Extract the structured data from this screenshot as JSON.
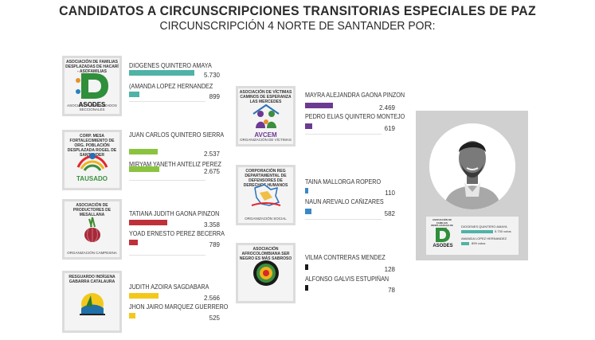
{
  "header": {
    "title": "CANDIDATOS A CIRCUNSCRIPCIONES TRANSITORIAS ESPECIALES DE PAZ",
    "subtitle": "CIRCUNSCRIPCIÓN 4 NORTE DE SANTANDER POR:"
  },
  "colors": {
    "asodes": "#4fb3a6",
    "corpo_fortalecimiento": "#8ac43f",
    "productores": "#c0303b",
    "resguardo": "#f3c81b",
    "avcem": "#6c3a92",
    "corp_derechos": "#3a87c8",
    "afro": "#1a1a1a"
  },
  "chart_data": {
    "type": "bar",
    "title": "CANDIDATOS A CIRCUNSCRIPCIONES TRANSITORIAS ESPECIALES DE PAZ",
    "subtitle": "CIRCUNSCRIPCIÓN 4 NORTE DE SANTANDER POR:",
    "groups": [
      {
        "organization": "ASOCIACIÓN DE FAMILIAS DESPLAZADAS DE HACARÍ - ASOFAMILIAS",
        "logo_text": "ASODES",
        "logo_sub": "ASOCIACIÓN DESPLAZADOS SECCIONALES",
        "color_key": "asodes",
        "candidates": [
          {
            "name": "DIOGENES QUINTERO AMAYA",
            "votes": 5730,
            "label": "5.730"
          },
          {
            "name": "(AMANDA LOPEZ HERNANDEZ",
            "votes": 899,
            "label": "899"
          }
        ]
      },
      {
        "organization": "CORP. MESA FORTALECIMIENTO DE ORG. POBLACIÓN DESPLAZADA ROGEL DE SANTANDER",
        "logo_text": "TAUSADO",
        "logo_sub": "",
        "color_key": "corpo_fortalecimiento",
        "candidates": [
          {
            "name": "JUAN CARLOS QUINTERO SIERRA",
            "votes": 2537,
            "label": "2.537"
          },
          {
            "name": "MIRYAM YANETH ANTELIZ PEREZ",
            "votes": 2675,
            "label": "2.675"
          }
        ]
      },
      {
        "organization": "ASOCIACIÓN DE PRODUCTORES DE MESALLANA",
        "logo_text": "",
        "logo_sub": "ORGANIZACIÓN CAMPESINA",
        "color_key": "productores",
        "candidates": [
          {
            "name": "TATIANA JUDITH GAONA PINZON",
            "votes": 3358,
            "label": "3.358"
          },
          {
            "name": "YOAD ERNESTO PEREZ BECERRA",
            "votes": 789,
            "label": "789"
          }
        ]
      },
      {
        "organization": "RESGUARDO INDÍGENA GABARRA CATALAURA",
        "logo_text": "",
        "logo_sub": "",
        "color_key": "resguardo",
        "candidates": [
          {
            "name": "JUDITH AZOIRA SAGDABARA",
            "votes": 2566,
            "label": "2.566"
          },
          {
            "name": "JHON JAIRO MARQUEZ GUERRERO",
            "votes": 525,
            "label": "525"
          }
        ]
      },
      {
        "organization": "ASOCIACIÓN DE VÍCTIMAS CAMINOS DE ESPERANZA LAS MERCEDES",
        "logo_text": "AVCEM",
        "logo_sub": "ORGANIZACIÓN DE VÍCTIMAS",
        "color_key": "avcem",
        "candidates": [
          {
            "name": "MAYRA ALEJANDRA GAONA PINZON",
            "votes": 2469,
            "label": "2.469"
          },
          {
            "name": "PEDRO ELIAS QUINTERO MONTEJO",
            "votes": 619,
            "label": "619"
          }
        ]
      },
      {
        "organization": "CORPORACIÓN REG DEPARTAMENTAL DE DEFENSORES DE DERECHOS HUMANOS",
        "logo_text": "",
        "logo_sub": "ORGANIZACIÓN SOCIAL",
        "color_key": "corp_derechos",
        "candidates": [
          {
            "name": "TAINA MALLORGA ROPERO",
            "votes": 110,
            "label": "110"
          },
          {
            "name": "NAUN AREVALO CAÑIZARES",
            "votes": 582,
            "label": "582"
          }
        ]
      },
      {
        "organization": "ASOCIACIÓN AFROCOLOMBIANA SER NEGRO ES MÁS SABROSO",
        "logo_text": "",
        "logo_sub": "",
        "color_key": "afro",
        "candidates": [
          {
            "name": "VILMA CONTRERAS MENDEZ",
            "votes": 128,
            "label": "128"
          },
          {
            "name": "ALFONSO GALVIS ESTUPIÑAN",
            "votes": 78,
            "label": "78"
          }
        ]
      }
    ]
  },
  "winner_card": {
    "logo_org": "ASOCIACIÓN DE FAMILIAS DESPLAZADAS DE HACARÍ",
    "logo_text": "ASODES",
    "candidate1": "DIOGENES QUINTERO AMAYA",
    "votes1": "5.730 votos",
    "candidate2": "AMANDA LOPEZ HERNANDEZ",
    "votes2": "899 votos"
  }
}
